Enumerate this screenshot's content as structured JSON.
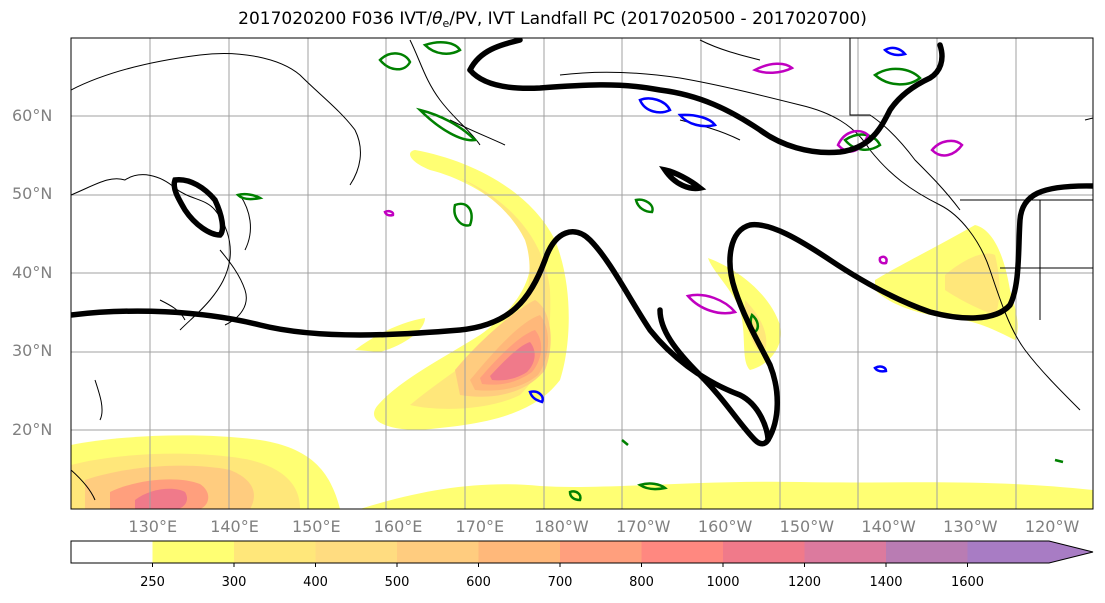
{
  "title": {
    "prefix": "2017020200 F036 IVT/",
    "theta_symbol": "θ",
    "theta_sub": "e",
    "suffix": "/PV, IVT Landfall PC (2017020500 - 2017020700)"
  },
  "map": {
    "projection": "equirectangular",
    "lon_range_east": [
      120,
      245
    ],
    "lat_range": [
      10,
      70
    ],
    "gridlines": true,
    "lat_labels": [
      "20°N",
      "30°N",
      "40°N",
      "50°N",
      "60°N"
    ],
    "lon_labels": [
      "130°E",
      "140°E",
      "150°E",
      "160°E",
      "170°E",
      "180°W",
      "170°W",
      "160°W",
      "150°W",
      "140°W",
      "130°W",
      "120°W"
    ]
  },
  "colorbar": {
    "levels": [
      250,
      300,
      400,
      500,
      600,
      700,
      800,
      1000,
      1200,
      1400,
      1600
    ],
    "labels": [
      "250",
      "300",
      "400",
      "500",
      "600",
      "700",
      "800",
      "1000",
      "1200",
      "1400",
      "1600"
    ],
    "colors": [
      "#ffffff",
      "#ffff73",
      "#ffe77a",
      "#ffdc80",
      "#ffcc7f",
      "#ffb87a",
      "#ff9f7d",
      "#ff8880",
      "#f07a8a",
      "#dc7a9e",
      "#b97cb3",
      "#a87cc4"
    ],
    "extend": "max"
  },
  "legend_colors": {
    "pv_contour": "#000000",
    "theta_e_green": "#008000",
    "theta_e_blue": "#0000ff",
    "theta_e_magenta": "#c000c0"
  }
}
